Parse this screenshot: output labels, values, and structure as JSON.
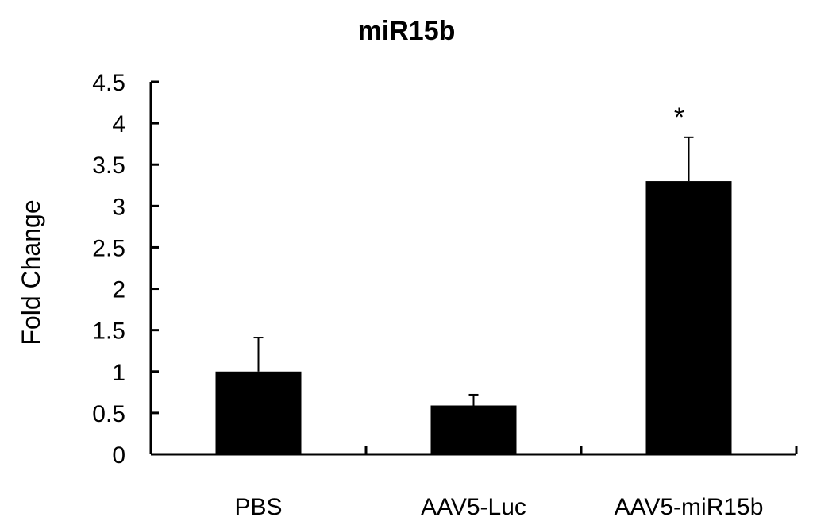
{
  "chart_data": {
    "type": "bar",
    "title": "miR15b",
    "xlabel": "",
    "ylabel": "Fold Change",
    "categories": [
      "PBS",
      "AAV5-Luc",
      "AAV5-miR15b"
    ],
    "values": [
      1.0,
      0.59,
      3.3
    ],
    "error_upper": [
      0.41,
      0.13,
      0.53
    ],
    "annotations": [
      "",
      "",
      "*"
    ],
    "ylim": [
      0,
      4.5
    ],
    "yticks": [
      "0",
      "0.5",
      "1",
      "1.5",
      "2",
      "2.5",
      "3",
      "3.5",
      "4",
      "4.5"
    ],
    "ytick_values": [
      0,
      0.5,
      1,
      1.5,
      2,
      2.5,
      3,
      3.5,
      4,
      4.5
    ],
    "grid": false,
    "legend": "none",
    "bar_color": "#000000"
  }
}
